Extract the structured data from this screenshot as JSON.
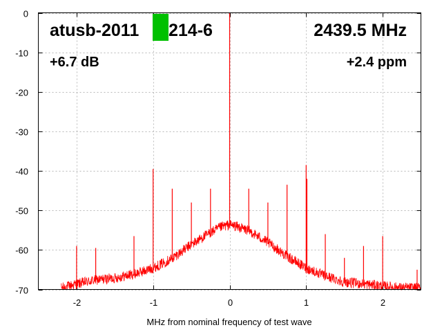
{
  "chart_data": {
    "type": "line",
    "title": "",
    "xlabel": "MHz from nominal frequency of test wave",
    "ylabel": "",
    "xlim": [
      -2.5,
      2.5
    ],
    "ylim": [
      -70,
      0
    ],
    "x_ticks": [
      -2,
      -1,
      0,
      1,
      2
    ],
    "y_ticks": [
      0,
      -10,
      -20,
      -30,
      -40,
      -50,
      -60,
      -70
    ],
    "grid": true,
    "series_color": "#ff0000",
    "marker_color": "#00c000",
    "annotations": {
      "device": "atusb-2011",
      "device_suffix": "214-6",
      "frequency": "2439.5 MHz",
      "gain": "+6.7 dB",
      "offset": "+2.4 ppm"
    },
    "noise_floor": {
      "x": [
        -2.2,
        -2.0,
        -1.75,
        -1.5,
        -1.25,
        -1.0,
        -0.75,
        -0.5,
        -0.25,
        -0.1,
        0.0,
        0.1,
        0.25,
        0.5,
        0.75,
        1.0,
        1.25,
        1.5,
        1.75,
        2.0,
        2.25,
        2.5
      ],
      "y": [
        -70,
        -69,
        -68,
        -67.5,
        -66.5,
        -65,
        -62.5,
        -59,
        -56,
        -54.5,
        -54,
        -54.5,
        -55.5,
        -58.5,
        -62,
        -65,
        -67,
        -68.5,
        -69,
        -69.5,
        -70,
        -70
      ]
    },
    "spurs": [
      {
        "x": 0.0,
        "y": 0
      },
      {
        "x": -2.0,
        "y": -59
      },
      {
        "x": -1.75,
        "y": -59.5
      },
      {
        "x": -1.25,
        "y": -56.5
      },
      {
        "x": -1.0,
        "y": -39.5
      },
      {
        "x": -0.75,
        "y": -44.5
      },
      {
        "x": -0.5,
        "y": -48
      },
      {
        "x": -0.25,
        "y": -44.5
      },
      {
        "x": 0.25,
        "y": -44.5
      },
      {
        "x": 0.5,
        "y": -48
      },
      {
        "x": 0.75,
        "y": -43.5
      },
      {
        "x": 1.0,
        "y": -38.5
      },
      {
        "x": 1.01,
        "y": -42
      },
      {
        "x": 1.25,
        "y": -56
      },
      {
        "x": 1.5,
        "y": -62
      },
      {
        "x": 1.75,
        "y": -59
      },
      {
        "x": 2.0,
        "y": -56.5
      },
      {
        "x": 2.45,
        "y": -65
      }
    ]
  }
}
